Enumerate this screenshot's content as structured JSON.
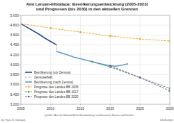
{
  "chart_data": {
    "type": "line",
    "title": "Amt Lenzen-Elbtalaue: Bevölkerungsentwicklung (2005-2023) und Prognosen (bis 2030) in den aktuellen Grenzen",
    "author": "by: Hans G. Oberlack",
    "source": "Quellen: Amt für Statistik Berlin-Brandenburg, Landesamt für Bauen und Verkehr",
    "date": "03.08.2024",
    "xlim": [
      2005,
      2030
    ],
    "xticks": [
      2005,
      2010,
      2015,
      2020,
      2025,
      2030
    ],
    "ylim": [
      3200,
      5000
    ],
    "yticks": [
      {
        "value": 3200,
        "label": "3.200"
      },
      {
        "value": 3400,
        "label": "3.400"
      },
      {
        "value": 3600,
        "label": "3.600"
      },
      {
        "value": 3800,
        "label": "3.800"
      },
      {
        "value": 4000,
        "label": "4.000"
      },
      {
        "value": 4200,
        "label": "4.200"
      },
      {
        "value": 4400,
        "label": "4.400"
      },
      {
        "value": 4600,
        "label": "4.600"
      },
      {
        "value": 4800,
        "label": "4.800"
      },
      {
        "value": 5000,
        "label": "5.000"
      }
    ],
    "grid": true,
    "legend": "lower left",
    "series": [
      {
        "name": "Bevölkerung (vor Zensus)",
        "color": "#1f4e9c",
        "line_style": "solid",
        "marker": "none",
        "x": [
          2005,
          2006,
          2007,
          2008,
          2009,
          2010,
          2011
        ],
        "values": [
          4830,
          4760,
          4690,
          4620,
          4540,
          4470,
          4400
        ]
      },
      {
        "name": "Zensuseffekt",
        "color": "#999999",
        "line_style": "dotted",
        "marker": "none",
        "x": [
          2011,
          2011
        ],
        "values": [
          4400,
          4270
        ]
      },
      {
        "name": "Bevölkerung (nach Zensus)",
        "color": "#5b9bd5",
        "line_style": "solid",
        "marker": "none",
        "x": [
          2011,
          2012,
          2013,
          2014,
          2015,
          2016,
          2017,
          2018,
          2019,
          2020,
          2021,
          2022,
          2023
        ],
        "values": [
          4270,
          4230,
          4190,
          4150,
          4120,
          4090,
          4060,
          4030,
          4000,
          3980,
          3970,
          3990,
          4020
        ]
      },
      {
        "name": "Prognose des Landes BB 2005",
        "color": "#f5a623",
        "line_style": "dashed",
        "marker": "circle",
        "x": [
          2005,
          2010,
          2015,
          2020,
          2025,
          2030
        ],
        "values": [
          4830,
          4740,
          4660,
          4580,
          4520,
          4480
        ]
      },
      {
        "name": "Prognose des Landes BB 2017",
        "color": "#3aa655",
        "line_style": "dashed",
        "marker": "circle",
        "x": [
          2017,
          2020,
          2025,
          2030
        ],
        "values": [
          4060,
          3950,
          3740,
          3520
        ]
      },
      {
        "name": "Prognose des Landes BB 2020",
        "color": "#8e44ad",
        "line_style": "dashed",
        "marker": "circle",
        "x": [
          2020,
          2025,
          2030
        ],
        "values": [
          3980,
          3740,
          3470
        ]
      }
    ]
  }
}
